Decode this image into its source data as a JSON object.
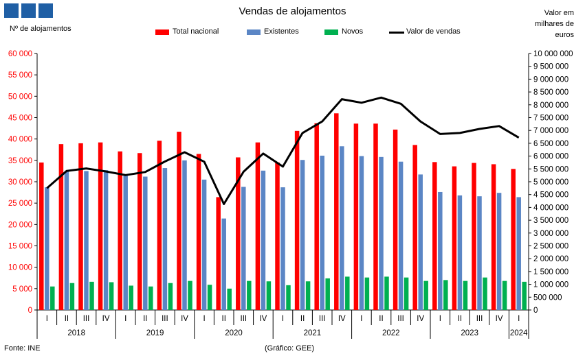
{
  "header": {
    "logo_icon": "ine-logo-squares",
    "title": "Vendas de alojamentos",
    "y_left_label": "Nº de alojamentos",
    "y_right_label": "Valor em milhares de euros"
  },
  "footer": {
    "source": "Fonte: INE",
    "credit": "(Gráfico: GEE)"
  },
  "chart_data": {
    "type": "bar",
    "title": "Vendas de alojamentos",
    "xlabel": "",
    "ylabel_left": "Nº de alojamentos",
    "ylabel_right": "Valor em milhares de euros",
    "ylim_left": [
      0,
      60000
    ],
    "ylim_right": [
      0,
      10000000
    ],
    "grid": false,
    "legend_position": "top",
    "quarters": [
      "I",
      "II",
      "III",
      "IV",
      "I",
      "II",
      "III",
      "IV",
      "I",
      "II",
      "III",
      "IV",
      "I",
      "II",
      "III",
      "IV",
      "I",
      "II",
      "III",
      "IV",
      "I",
      "II",
      "III",
      "IV",
      "I"
    ],
    "years": [
      {
        "label": "2018",
        "count": 4
      },
      {
        "label": "2019",
        "count": 4
      },
      {
        "label": "2020",
        "count": 4
      },
      {
        "label": "2021",
        "count": 4
      },
      {
        "label": "2022",
        "count": 4
      },
      {
        "label": "2023",
        "count": 4
      },
      {
        "label": "2024",
        "count": 1
      }
    ],
    "y_left_ticks": [
      "0",
      "5 000",
      "10 000",
      "15 000",
      "20 000",
      "25 000",
      "30 000",
      "35 000",
      "40 000",
      "45 000",
      "50 000",
      "55 000",
      "60 000"
    ],
    "y_right_ticks": [
      "0",
      "500 000",
      "1 000 000",
      "1 500 000",
      "2 000 000",
      "2 500 000",
      "3 000 000",
      "3 500 000",
      "4 000 000",
      "4 500 000",
      "5 000 000",
      "5 500 000",
      "6 000 000",
      "6 500 000",
      "7 000 000",
      "7 500 000",
      "8 000 000",
      "8 500 000",
      "9 000 000",
      "9 500 000",
      "10 000 000"
    ],
    "series": [
      {
        "name": "Total nacional",
        "kind": "bar",
        "axis": "left",
        "color": "#ff0000",
        "values": [
          34500,
          38800,
          39000,
          39200,
          37100,
          36700,
          39600,
          41700,
          36500,
          26400,
          35700,
          39200,
          34500,
          41900,
          43700,
          46000,
          43600,
          43600,
          42200,
          38600,
          34600,
          33600,
          34400,
          34100,
          33000
        ]
      },
      {
        "name": "Existentes",
        "kind": "bar",
        "axis": "left",
        "color": "#5b86c5",
        "values": [
          28700,
          32400,
          32500,
          32700,
          31400,
          31200,
          33200,
          35000,
          30500,
          21400,
          28800,
          32600,
          28700,
          35100,
          36100,
          38300,
          36000,
          35800,
          34700,
          31700,
          27600,
          26800,
          26600,
          27400,
          26400
        ]
      },
      {
        "name": "Novos",
        "kind": "bar",
        "axis": "left",
        "color": "#00b050",
        "values": [
          5500,
          6300,
          6600,
          6500,
          5700,
          5500,
          6300,
          6800,
          5900,
          5000,
          6800,
          6700,
          5800,
          6700,
          7400,
          7800,
          7600,
          7800,
          7600,
          6800,
          7000,
          6800,
          7600,
          6800,
          6600
        ]
      },
      {
        "name": "Valor de vendas",
        "kind": "line",
        "axis": "right",
        "color": "#000000",
        "values": [
          4750000,
          5420000,
          5520000,
          5400000,
          5260000,
          5380000,
          5790000,
          6150000,
          5780000,
          4130000,
          5390000,
          6100000,
          5590000,
          6900000,
          7350000,
          8220000,
          8080000,
          8280000,
          8040000,
          7350000,
          6860000,
          6900000,
          7060000,
          7170000,
          6720000
        ]
      }
    ]
  }
}
